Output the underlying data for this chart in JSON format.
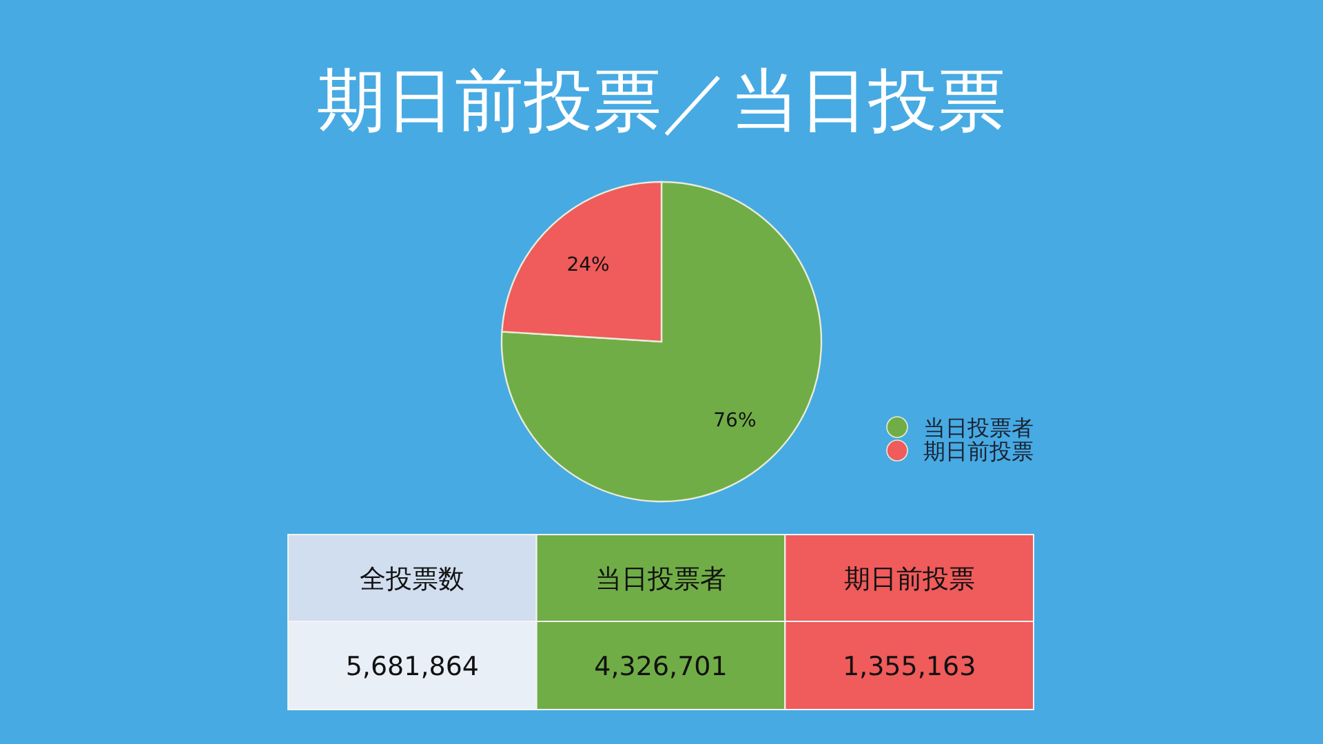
{
  "chart_data": {
    "type": "pie",
    "title": "期日前投票／当日投票",
    "categories": [
      "当日投票者",
      "期日前投票"
    ],
    "values": [
      76,
      24
    ],
    "colors": [
      "#70ad47",
      "#f05b5b"
    ],
    "value_labels": [
      "76%",
      "24%"
    ],
    "legend": "bottom right",
    "annotations": [
      "全投票数",
      "当日投票者",
      "期日前投票",
      "5,681,864",
      "4,326,701",
      "1,355,163"
    ]
  }
}
